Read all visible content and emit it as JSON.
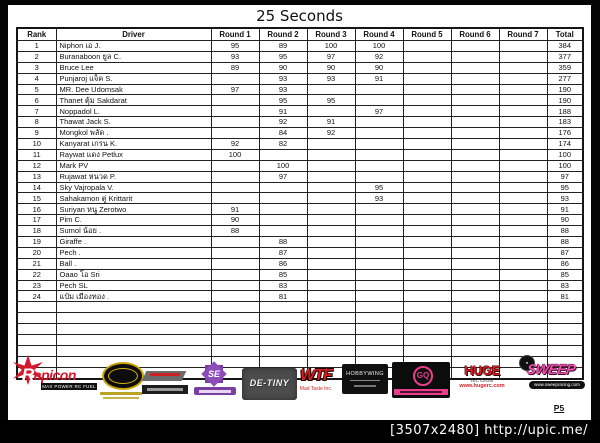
{
  "title": "25 Seconds",
  "table": {
    "headers": [
      "Rank",
      "Driver",
      "Round 1",
      "Round 2",
      "Round 3",
      "Round 4",
      "Round 5",
      "Round 6",
      "Round 7",
      "Total"
    ],
    "empty_row_count": 7,
    "rows": [
      {
        "rank": "1",
        "driver": "Niphon เอ J.",
        "r1": "95",
        "r2": "89",
        "r3": "100",
        "r4": "100",
        "r5": "",
        "r6": "",
        "r7": "",
        "total": "384"
      },
      {
        "rank": "2",
        "driver": "Buranaboon ยูล C.",
        "r1": "93",
        "r2": "95",
        "r3": "97",
        "r4": "92",
        "r5": "",
        "r6": "",
        "r7": "",
        "total": "377"
      },
      {
        "rank": "3",
        "driver": "Bruce Lee",
        "r1": "89",
        "r2": "90",
        "r3": "90",
        "r4": "90",
        "r5": "",
        "r6": "",
        "r7": "",
        "total": "359"
      },
      {
        "rank": "4",
        "driver": "Punjaroj แจ็ค S.",
        "r1": "",
        "r2": "93",
        "r3": "93",
        "r4": "91",
        "r5": "",
        "r6": "",
        "r7": "",
        "total": "277"
      },
      {
        "rank": "5",
        "driver": "MR. Dee Udomsak",
        "r1": "97",
        "r2": "93",
        "r3": "",
        "r4": "",
        "r5": "",
        "r6": "",
        "r7": "",
        "total": "190"
      },
      {
        "rank": "6",
        "driver": "Thanet ตุ้ม Sakdarat",
        "r1": "",
        "r2": "95",
        "r3": "95",
        "r4": "",
        "r5": "",
        "r6": "",
        "r7": "",
        "total": "190"
      },
      {
        "rank": "7",
        "driver": "Noppadol L.",
        "r1": "",
        "r2": "91",
        "r3": "",
        "r4": "97",
        "r5": "",
        "r6": "",
        "r7": "",
        "total": "188"
      },
      {
        "rank": "8",
        "driver": "Thawat Jack S.",
        "r1": "",
        "r2": "92",
        "r3": "91",
        "r4": "",
        "r5": "",
        "r6": "",
        "r7": "",
        "total": "183"
      },
      {
        "rank": "9",
        "driver": "Mongkol พลัด .",
        "r1": "",
        "r2": "84",
        "r3": "92",
        "r4": "",
        "r5": "",
        "r6": "",
        "r7": "",
        "total": "176"
      },
      {
        "rank": "10",
        "driver": "Kanyarat เกรน K.",
        "r1": "92",
        "r2": "82",
        "r3": "",
        "r4": "",
        "r5": "",
        "r6": "",
        "r7": "",
        "total": "174"
      },
      {
        "rank": "11",
        "driver": "Raywat แดง Petlux",
        "r1": "100",
        "r2": "",
        "r3": "",
        "r4": "",
        "r5": "",
        "r6": "",
        "r7": "",
        "total": "100"
      },
      {
        "rank": "12",
        "driver": "Mark PV",
        "r1": "",
        "r2": "100",
        "r3": "",
        "r4": "",
        "r5": "",
        "r6": "",
        "r7": "",
        "total": "100"
      },
      {
        "rank": "13",
        "driver": "Rujawat หนวด P.",
        "r1": "",
        "r2": "97",
        "r3": "",
        "r4": "",
        "r5": "",
        "r6": "",
        "r7": "",
        "total": "97"
      },
      {
        "rank": "14",
        "driver": "Sky Vajropala V.",
        "r1": "",
        "r2": "",
        "r3": "",
        "r4": "95",
        "r5": "",
        "r6": "",
        "r7": "",
        "total": "95"
      },
      {
        "rank": "15",
        "driver": "Sahakamon ตู่ Krittarit",
        "r1": "",
        "r2": "",
        "r3": "",
        "r4": "93",
        "r5": "",
        "r6": "",
        "r7": "",
        "total": "93"
      },
      {
        "rank": "16",
        "driver": "Suriyan หนู Zerotwo",
        "r1": "91",
        "r2": "",
        "r3": "",
        "r4": "",
        "r5": "",
        "r6": "",
        "r7": "",
        "total": "91"
      },
      {
        "rank": "17",
        "driver": "Pim C.",
        "r1": "90",
        "r2": "",
        "r3": "",
        "r4": "",
        "r5": "",
        "r6": "",
        "r7": "",
        "total": "90"
      },
      {
        "rank": "18",
        "driver": "Sumol น้อย .",
        "r1": "88",
        "r2": "",
        "r3": "",
        "r4": "",
        "r5": "",
        "r6": "",
        "r7": "",
        "total": "88"
      },
      {
        "rank": "19",
        "driver": "Giraffe .",
        "r1": "",
        "r2": "88",
        "r3": "",
        "r4": "",
        "r5": "",
        "r6": "",
        "r7": "",
        "total": "88"
      },
      {
        "rank": "20",
        "driver": "Pech .",
        "r1": "",
        "r2": "87",
        "r3": "",
        "r4": "",
        "r5": "",
        "r6": "",
        "r7": "",
        "total": "87"
      },
      {
        "rank": "21",
        "driver": "Ball .",
        "r1": "",
        "r2": "86",
        "r3": "",
        "r4": "",
        "r5": "",
        "r6": "",
        "r7": "",
        "total": "86"
      },
      {
        "rank": "22",
        "driver": "Oaao โอ Sri",
        "r1": "",
        "r2": "85",
        "r3": "",
        "r4": "",
        "r5": "",
        "r6": "",
        "r7": "",
        "total": "85"
      },
      {
        "rank": "23",
        "driver": "Pech SL",
        "r1": "",
        "r2": "83",
        "r3": "",
        "r4": "",
        "r5": "",
        "r6": "",
        "r7": "",
        "total": "83"
      },
      {
        "rank": "24",
        "driver": "แป๋ม เมืองทอง .",
        "r1": "",
        "r2": "81",
        "r3": "",
        "r4": "",
        "r5": "",
        "r6": "",
        "r7": "",
        "total": "81"
      }
    ]
  },
  "sponsors": {
    "rapicon": {
      "label": "Rapicon",
      "tagline": "MAX POWER RC FUEL"
    },
    "se": {
      "label": "SE"
    },
    "destiny": {
      "label": "DE-TINY"
    },
    "wtf": {
      "label": "WTF",
      "tagline": "Mad Taste Inc."
    },
    "hobbywing": {
      "label": "HOBBYWING"
    },
    "gq": {
      "label": "GQ"
    },
    "huge": {
      "label": "HUGE",
      "circuit": "R/C Circuit",
      "url": "www.hugerc.com"
    },
    "sweep": {
      "label": "SWEEP",
      "url": "www.sweepracing.com"
    }
  },
  "page_label": "P5",
  "footer": {
    "caption": "[3507x2480] http://upic.me/"
  }
}
